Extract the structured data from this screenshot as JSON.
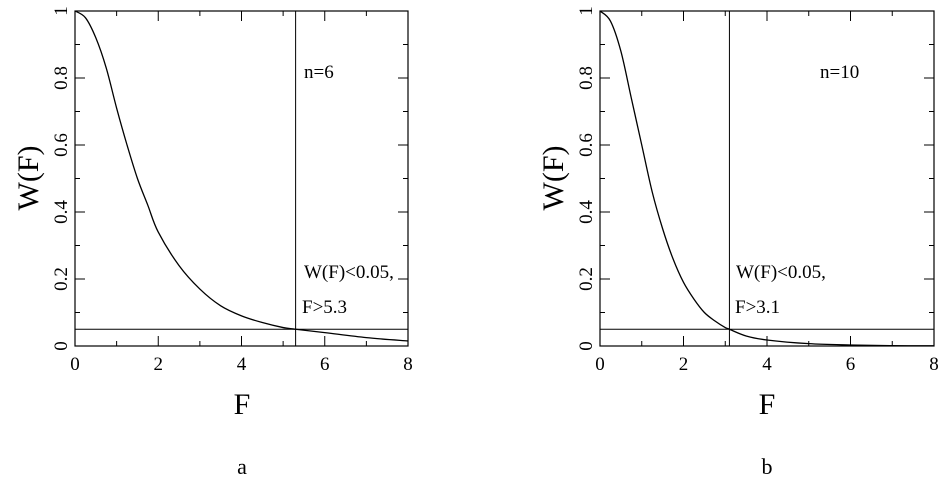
{
  "chart_data": [
    {
      "type": "line",
      "panel_label": "a",
      "xlabel": "F",
      "ylabel": "W(F)",
      "xlim": [
        0,
        8
      ],
      "ylim": [
        0,
        1
      ],
      "xticks": [
        0,
        2,
        4,
        6,
        8
      ],
      "yticks": [
        0,
        0.2,
        0.4,
        0.6,
        0.8,
        1
      ],
      "ytick_labels": [
        "0",
        "0.2",
        "0.4",
        "0.6",
        "0.8",
        "1"
      ],
      "grid": false,
      "n": 6,
      "annotations": [
        "n=6",
        "W(F)<0.05,",
        "F>5.3"
      ],
      "hline_y": 0.05,
      "vline_x": 5.3,
      "series": [
        {
          "x": [
            0,
            0.25,
            0.5,
            0.75,
            1,
            1.25,
            1.5,
            1.75,
            2,
            2.5,
            3,
            3.5,
            4,
            4.5,
            5,
            5.3,
            6,
            7,
            8
          ],
          "y": [
            1,
            0.98,
            0.92,
            0.83,
            0.71,
            0.6,
            0.5,
            0.42,
            0.34,
            0.24,
            0.17,
            0.12,
            0.09,
            0.07,
            0.055,
            0.05,
            0.04,
            0.025,
            0.015
          ]
        }
      ]
    },
    {
      "type": "line",
      "panel_label": "b",
      "xlabel": "F",
      "ylabel": "W(F)",
      "xlim": [
        0,
        8
      ],
      "ylim": [
        0,
        1
      ],
      "xticks": [
        0,
        2,
        4,
        6,
        8
      ],
      "yticks": [
        0,
        0.2,
        0.4,
        0.6,
        0.8,
        1
      ],
      "ytick_labels": [
        "0",
        "0.2",
        "0.4",
        "0.6",
        "0.8",
        "1"
      ],
      "grid": false,
      "n": 10,
      "annotations": [
        "n=10",
        "W(F)<0.05,",
        "F>3.1"
      ],
      "hline_y": 0.05,
      "vline_x": 3.1,
      "series": [
        {
          "x": [
            0,
            0.25,
            0.5,
            0.75,
            1,
            1.25,
            1.5,
            1.75,
            2,
            2.25,
            2.5,
            2.75,
            3,
            3.1,
            3.5,
            4,
            5,
            6,
            7,
            8
          ],
          "y": [
            1,
            0.97,
            0.88,
            0.74,
            0.6,
            0.46,
            0.35,
            0.26,
            0.19,
            0.14,
            0.1,
            0.075,
            0.055,
            0.05,
            0.03,
            0.018,
            0.007,
            0.003,
            0.001,
            0.0005
          ]
        }
      ]
    }
  ]
}
